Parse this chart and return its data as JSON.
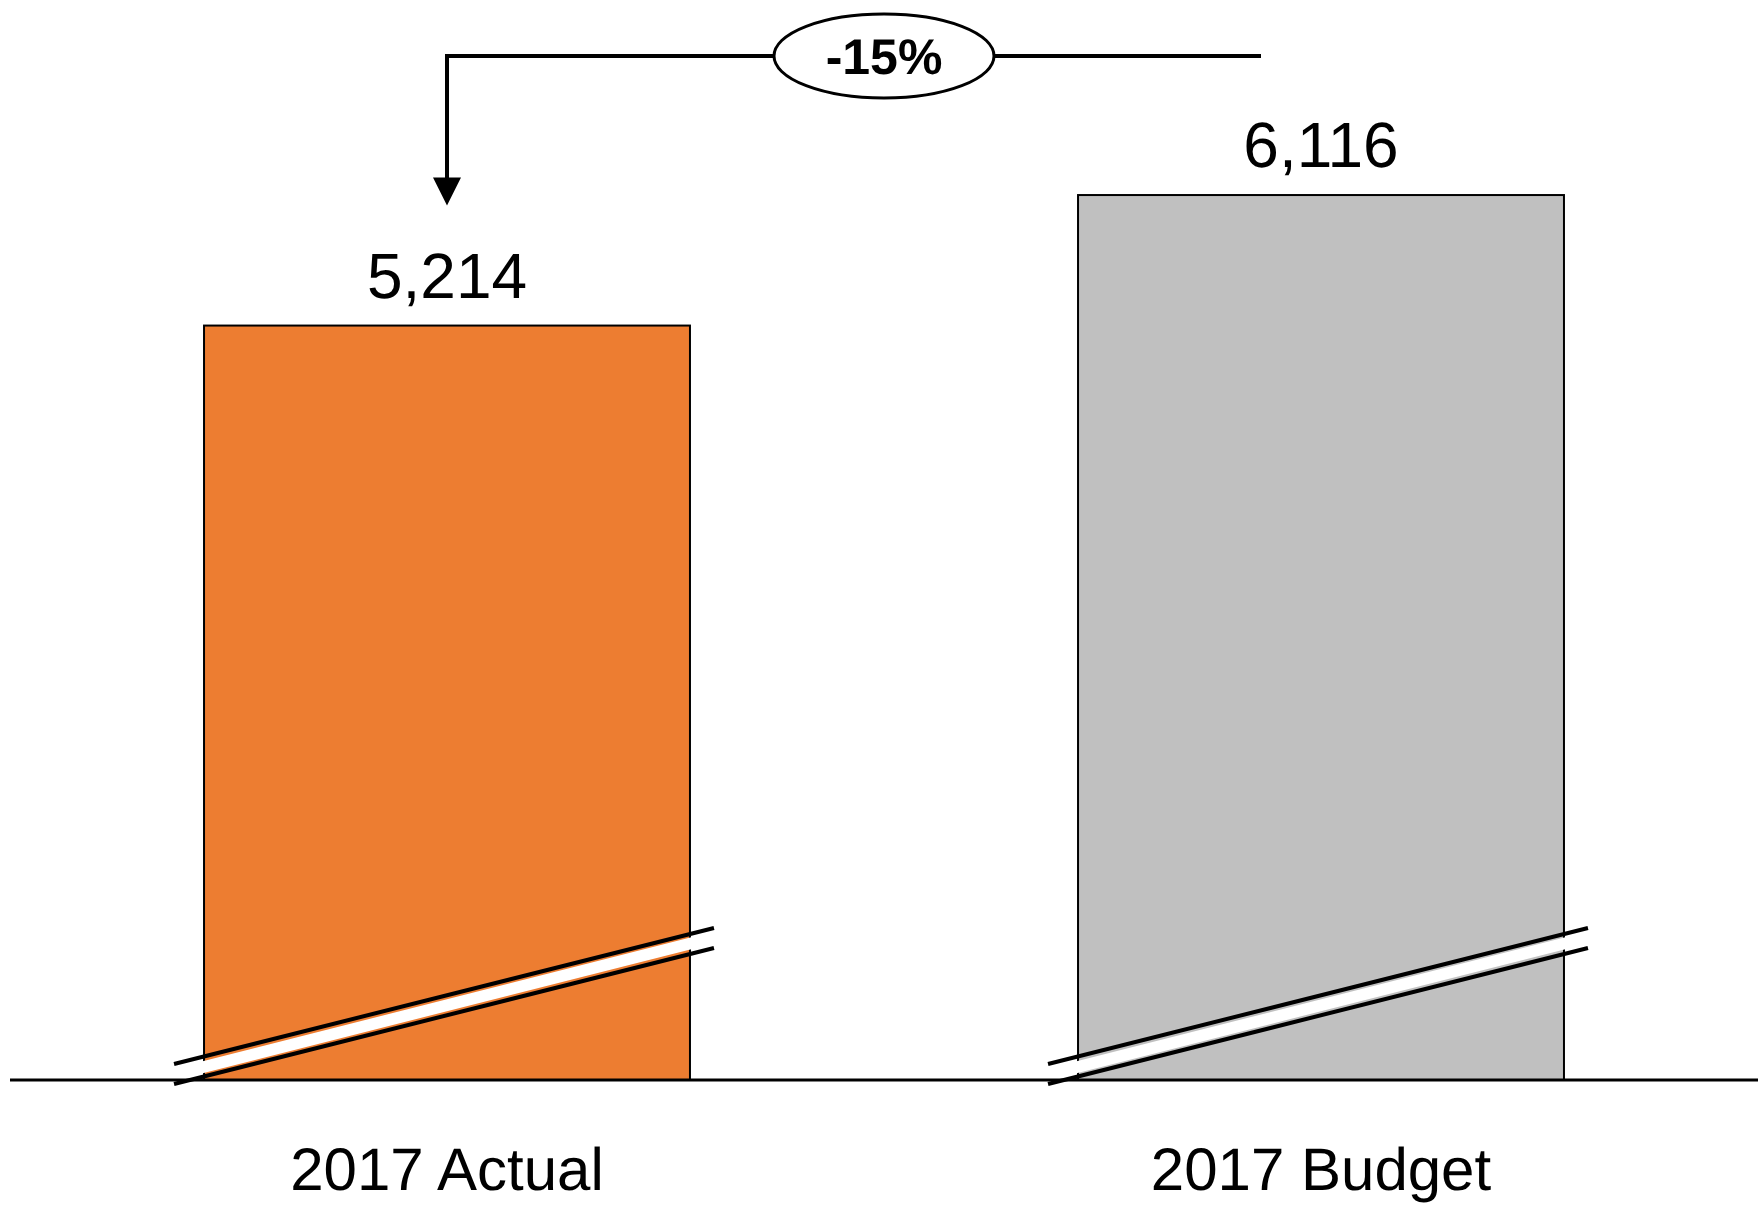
{
  "chart_data": {
    "type": "bar",
    "categories": [
      "2017 Actual",
      "2017 Budget"
    ],
    "values": [
      5214,
      6116
    ],
    "colors": [
      "#ed7d31",
      "#c0c0c0"
    ],
    "value_labels": [
      "5,214",
      "6,116"
    ],
    "annotations": [
      "-15%"
    ]
  }
}
